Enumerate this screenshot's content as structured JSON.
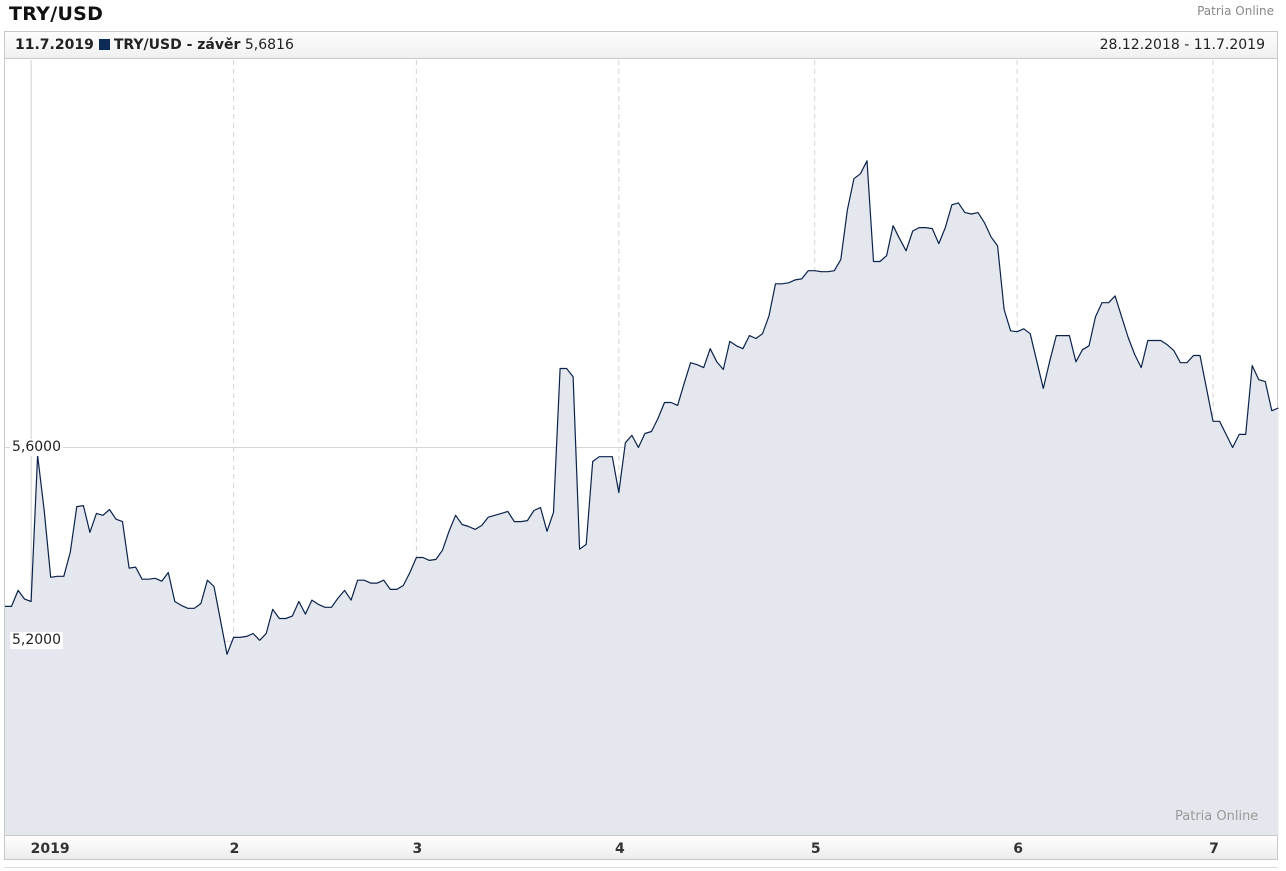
{
  "title": "TRY/USD",
  "brand": "Patria Online",
  "header": {
    "date": "11.7.2019",
    "series_label": "TRY/USD - závěr",
    "value": "5,6816",
    "range": "28.12.2018 - 11.7.2019"
  },
  "watermark": "Patria Online",
  "colors": {
    "line": "#0b2249",
    "fill": "#e4e7ee",
    "series_square": "#0b2a55"
  },
  "chart_data": {
    "type": "area",
    "title": "TRY/USD",
    "xlabel": "",
    "ylabel": "",
    "ylim": [
      4.8,
      6.4
    ],
    "y_ticks": [
      {
        "value": 5.2,
        "label": "5,2000"
      },
      {
        "value": 5.6,
        "label": "5,6000"
      }
    ],
    "x_ticks": [
      {
        "date": "2019-01-01",
        "label": "2019"
      },
      {
        "date": "2019-02-01",
        "label": "2"
      },
      {
        "date": "2019-03-01",
        "label": "3"
      },
      {
        "date": "2019-04-01",
        "label": "4"
      },
      {
        "date": "2019-05-01",
        "label": "5"
      },
      {
        "date": "2019-06-01",
        "label": "6"
      },
      {
        "date": "2019-07-01",
        "label": "7"
      }
    ],
    "grid": true,
    "series": [
      {
        "name": "TRY/USD - závěr",
        "points": [
          [
            "2018-12-28",
            5.272
          ],
          [
            "2018-12-29",
            5.272
          ],
          [
            "2018-12-30",
            5.305
          ],
          [
            "2018-12-31",
            5.287
          ],
          [
            "2019-01-01",
            5.282
          ],
          [
            "2019-01-02",
            5.584
          ],
          [
            "2019-01-03",
            5.47
          ],
          [
            "2019-01-04",
            5.332
          ],
          [
            "2019-01-05",
            5.334
          ],
          [
            "2019-01-06",
            5.334
          ],
          [
            "2019-01-07",
            5.384
          ],
          [
            "2019-01-08",
            5.478
          ],
          [
            "2019-01-09",
            5.48
          ],
          [
            "2019-01-10",
            5.425
          ],
          [
            "2019-01-11",
            5.464
          ],
          [
            "2019-01-12",
            5.46
          ],
          [
            "2019-01-13",
            5.472
          ],
          [
            "2019-01-14",
            5.452
          ],
          [
            "2019-01-15",
            5.447
          ],
          [
            "2019-01-16",
            5.351
          ],
          [
            "2019-01-17",
            5.353
          ],
          [
            "2019-01-18",
            5.328
          ],
          [
            "2019-01-19",
            5.328
          ],
          [
            "2019-01-20",
            5.33
          ],
          [
            "2019-01-21",
            5.324
          ],
          [
            "2019-01-22",
            5.342
          ],
          [
            "2019-01-23",
            5.282
          ],
          [
            "2019-01-24",
            5.274
          ],
          [
            "2019-01-25",
            5.268
          ],
          [
            "2019-01-26",
            5.268
          ],
          [
            "2019-01-27",
            5.278
          ],
          [
            "2019-01-28",
            5.326
          ],
          [
            "2019-01-29",
            5.313
          ],
          [
            "2019-01-30",
            5.243
          ],
          [
            "2019-01-31",
            5.173
          ],
          [
            "2019-02-01",
            5.208
          ],
          [
            "2019-02-02",
            5.208
          ],
          [
            "2019-02-03",
            5.21
          ],
          [
            "2019-02-04",
            5.216
          ],
          [
            "2019-02-05",
            5.202
          ],
          [
            "2019-02-06",
            5.216
          ],
          [
            "2019-02-07",
            5.266
          ],
          [
            "2019-02-08",
            5.247
          ],
          [
            "2019-02-09",
            5.247
          ],
          [
            "2019-02-10",
            5.252
          ],
          [
            "2019-02-11",
            5.282
          ],
          [
            "2019-02-12",
            5.256
          ],
          [
            "2019-02-13",
            5.285
          ],
          [
            "2019-02-14",
            5.276
          ],
          [
            "2019-02-15",
            5.27
          ],
          [
            "2019-02-16",
            5.27
          ],
          [
            "2019-02-17",
            5.289
          ],
          [
            "2019-02-18",
            5.305
          ],
          [
            "2019-02-19",
            5.285
          ],
          [
            "2019-02-20",
            5.326
          ],
          [
            "2019-02-21",
            5.326
          ],
          [
            "2019-02-22",
            5.32
          ],
          [
            "2019-02-23",
            5.32
          ],
          [
            "2019-02-24",
            5.326
          ],
          [
            "2019-02-25",
            5.307
          ],
          [
            "2019-02-26",
            5.307
          ],
          [
            "2019-02-27",
            5.315
          ],
          [
            "2019-02-28",
            5.342
          ],
          [
            "2019-03-01",
            5.373
          ],
          [
            "2019-03-02",
            5.373
          ],
          [
            "2019-03-03",
            5.367
          ],
          [
            "2019-03-04",
            5.369
          ],
          [
            "2019-03-05",
            5.388
          ],
          [
            "2019-03-06",
            5.427
          ],
          [
            "2019-03-07",
            5.46
          ],
          [
            "2019-03-08",
            5.441
          ],
          [
            "2019-03-09",
            5.437
          ],
          [
            "2019-03-10",
            5.431
          ],
          [
            "2019-03-11",
            5.439
          ],
          [
            "2019-03-12",
            5.456
          ],
          [
            "2019-03-13",
            5.46
          ],
          [
            "2019-03-14",
            5.464
          ],
          [
            "2019-03-15",
            5.468
          ],
          [
            "2019-03-16",
            5.447
          ],
          [
            "2019-03-17",
            5.447
          ],
          [
            "2019-03-18",
            5.449
          ],
          [
            "2019-03-19",
            5.47
          ],
          [
            "2019-03-20",
            5.476
          ],
          [
            "2019-03-21",
            5.427
          ],
          [
            "2019-03-22",
            5.466
          ],
          [
            "2019-03-23",
            5.763
          ],
          [
            "2019-03-24",
            5.763
          ],
          [
            "2019-03-25",
            5.746
          ],
          [
            "2019-03-26",
            5.39
          ],
          [
            "2019-03-27",
            5.4
          ],
          [
            "2019-03-28",
            5.571
          ],
          [
            "2019-03-29",
            5.581
          ],
          [
            "2019-03-30",
            5.581
          ],
          [
            "2019-03-31",
            5.581
          ],
          [
            "2019-04-01",
            5.507
          ],
          [
            "2019-04-02",
            5.61
          ],
          [
            "2019-04-03",
            5.625
          ],
          [
            "2019-04-04",
            5.6
          ],
          [
            "2019-04-05",
            5.629
          ],
          [
            "2019-04-06",
            5.633
          ],
          [
            "2019-04-07",
            5.66
          ],
          [
            "2019-04-08",
            5.693
          ],
          [
            "2019-04-09",
            5.693
          ],
          [
            "2019-04-10",
            5.687
          ],
          [
            "2019-04-11",
            5.732
          ],
          [
            "2019-04-12",
            5.775
          ],
          [
            "2019-04-13",
            5.771
          ],
          [
            "2019-04-14",
            5.765
          ],
          [
            "2019-04-15",
            5.804
          ],
          [
            "2019-04-16",
            5.777
          ],
          [
            "2019-04-17",
            5.761
          ],
          [
            "2019-04-18",
            5.819
          ],
          [
            "2019-04-19",
            5.81
          ],
          [
            "2019-04-20",
            5.804
          ],
          [
            "2019-04-21",
            5.831
          ],
          [
            "2019-04-22",
            5.825
          ],
          [
            "2019-04-23",
            5.835
          ],
          [
            "2019-04-24",
            5.872
          ],
          [
            "2019-04-25",
            5.938
          ],
          [
            "2019-04-26",
            5.938
          ],
          [
            "2019-04-27",
            5.94
          ],
          [
            "2019-04-28",
            5.946
          ],
          [
            "2019-04-29",
            5.948
          ],
          [
            "2019-04-30",
            5.965
          ],
          [
            "2019-05-01",
            5.965
          ],
          [
            "2019-05-02",
            5.963
          ],
          [
            "2019-05-03",
            5.963
          ],
          [
            "2019-05-04",
            5.965
          ],
          [
            "2019-05-05",
            5.988
          ],
          [
            "2019-05-06",
            6.091
          ],
          [
            "2019-05-07",
            6.155
          ],
          [
            "2019-05-08",
            6.165
          ],
          [
            "2019-05-09",
            6.192
          ],
          [
            "2019-05-10",
            5.984
          ],
          [
            "2019-05-11",
            5.984
          ],
          [
            "2019-05-12",
            5.996
          ],
          [
            "2019-05-13",
            6.058
          ],
          [
            "2019-05-14",
            6.031
          ],
          [
            "2019-05-15",
            6.006
          ],
          [
            "2019-05-16",
            6.047
          ],
          [
            "2019-05-17",
            6.054
          ],
          [
            "2019-05-18",
            6.054
          ],
          [
            "2019-05-19",
            6.052
          ],
          [
            "2019-05-20",
            6.021
          ],
          [
            "2019-05-21",
            6.054
          ],
          [
            "2019-05-22",
            6.101
          ],
          [
            "2019-05-23",
            6.105
          ],
          [
            "2019-05-24",
            6.085
          ],
          [
            "2019-05-25",
            6.082
          ],
          [
            "2019-05-26",
            6.085
          ],
          [
            "2019-05-27",
            6.064
          ],
          [
            "2019-05-28",
            6.035
          ],
          [
            "2019-05-29",
            6.016
          ],
          [
            "2019-05-30",
            5.885
          ],
          [
            "2019-05-31",
            5.841
          ],
          [
            "2019-06-01",
            5.839
          ],
          [
            "2019-06-02",
            5.845
          ],
          [
            "2019-06-03",
            5.835
          ],
          [
            "2019-06-04",
            5.779
          ],
          [
            "2019-06-05",
            5.722
          ],
          [
            "2019-06-06",
            5.779
          ],
          [
            "2019-06-07",
            5.831
          ],
          [
            "2019-06-08",
            5.831
          ],
          [
            "2019-06-09",
            5.831
          ],
          [
            "2019-06-10",
            5.777
          ],
          [
            "2019-06-11",
            5.802
          ],
          [
            "2019-06-12",
            5.81
          ],
          [
            "2019-06-13",
            5.87
          ],
          [
            "2019-06-14",
            5.899
          ],
          [
            "2019-06-15",
            5.899
          ],
          [
            "2019-06-16",
            5.913
          ],
          [
            "2019-06-17",
            5.87
          ],
          [
            "2019-06-18",
            5.827
          ],
          [
            "2019-06-19",
            5.792
          ],
          [
            "2019-06-20",
            5.765
          ],
          [
            "2019-06-21",
            5.821
          ],
          [
            "2019-06-22",
            5.821
          ],
          [
            "2019-06-23",
            5.821
          ],
          [
            "2019-06-24",
            5.812
          ],
          [
            "2019-06-25",
            5.8
          ],
          [
            "2019-06-26",
            5.775
          ],
          [
            "2019-06-27",
            5.775
          ],
          [
            "2019-06-28",
            5.79
          ],
          [
            "2019-06-29",
            5.79
          ],
          [
            "2019-06-30",
            5.722
          ],
          [
            "2019-07-01",
            5.654
          ],
          [
            "2019-07-02",
            5.654
          ],
          [
            "2019-07-03",
            5.627
          ],
          [
            "2019-07-04",
            5.6
          ],
          [
            "2019-07-05",
            5.627
          ],
          [
            "2019-07-06",
            5.627
          ],
          [
            "2019-07-07",
            5.769
          ],
          [
            "2019-07-08",
            5.74
          ],
          [
            "2019-07-09",
            5.736
          ],
          [
            "2019-07-10",
            5.676
          ],
          [
            "2019-07-11",
            5.6816
          ]
        ]
      }
    ]
  }
}
